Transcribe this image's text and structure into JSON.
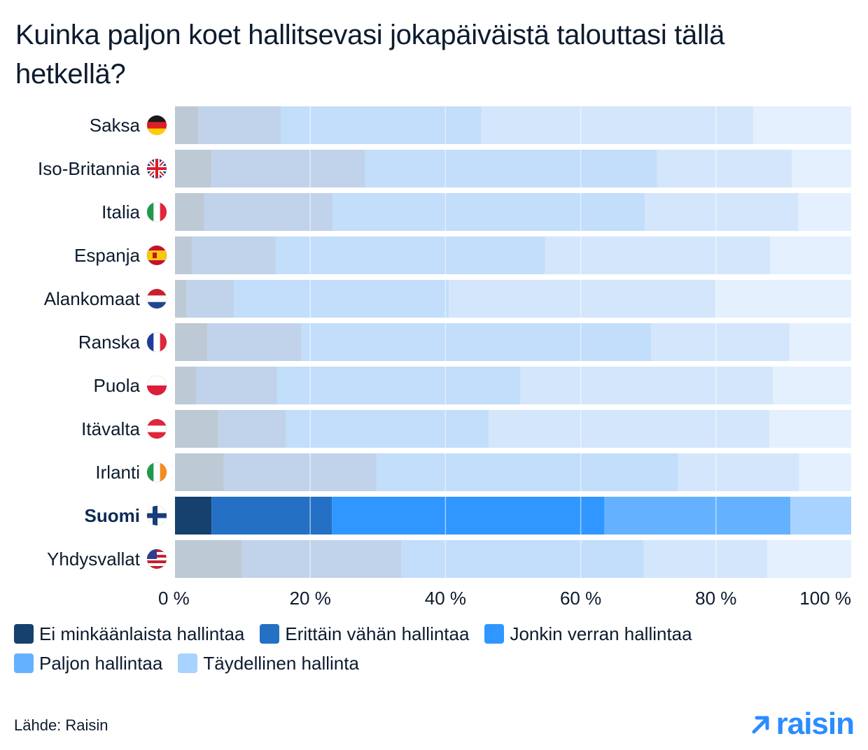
{
  "chart_data": {
    "type": "bar",
    "orientation": "horizontal",
    "stacked": true,
    "title": "Kuinka paljon koet hallitsevasi jokapäiväistä talouttasi tällä hetkellä?",
    "categories": [
      "Saksa",
      "Iso-Britannia",
      "Italia",
      "Espanja",
      "Alankomaat",
      "Ranska",
      "Puola",
      "Itävalta",
      "Irlanti",
      "Suomi",
      "Yhdysvallat"
    ],
    "highlight": "Suomi",
    "flags": [
      "de-flag-icon",
      "gb-flag-icon",
      "it-flag-icon",
      "es-flag-icon",
      "nl-flag-icon",
      "fr-flag-icon",
      "pl-flag-icon",
      "at-flag-icon",
      "ie-flag-icon",
      "fi-flag-icon",
      "us-flag-icon"
    ],
    "series": [
      {
        "name": "Ei minkäänlaista hallintaa",
        "color": "#16406e",
        "muted": "#bec9d6",
        "values": [
          3.5,
          5.4,
          4.3,
          2.5,
          1.7,
          4.8,
          3.1,
          6.4,
          7.2,
          5.4,
          9.9
        ]
      },
      {
        "name": "Erittäin vähän hallintaa",
        "color": "#2470c4",
        "muted": "#c0d3ea",
        "values": [
          12.2,
          22.7,
          19.0,
          12.4,
          7.0,
          13.9,
          12.0,
          10.0,
          22.6,
          17.8,
          23.6
        ]
      },
      {
        "name": "Jonkin verran hallintaa",
        "color": "#2f97ff",
        "muted": "#c2defb",
        "values": [
          29.6,
          43.2,
          46.2,
          39.8,
          31.8,
          51.7,
          36.0,
          30.0,
          44.6,
          40.3,
          35.8
        ]
      },
      {
        "name": "Paljon hallintaa",
        "color": "#64b2ff",
        "muted": "#d3e6fb",
        "values": [
          40.2,
          19.9,
          22.7,
          33.3,
          39.5,
          20.5,
          37.3,
          41.5,
          17.9,
          27.5,
          18.3
        ]
      },
      {
        "name": "Täydellinen hallinta",
        "color": "#a8d2ff",
        "muted": "#e4f0fd",
        "values": [
          14.5,
          8.8,
          7.8,
          12.0,
          20.0,
          9.1,
          11.6,
          12.1,
          7.7,
          9.0,
          12.4
        ]
      }
    ],
    "xlim": [
      0,
      100
    ],
    "xticks": [
      0,
      20,
      40,
      60,
      80,
      100
    ],
    "xtick_labels": [
      "0 %",
      "20 %",
      "40 %",
      "60 %",
      "80 %",
      "100 %"
    ],
    "grid": true,
    "legend_position": "bottom"
  },
  "footer": {
    "source": "Lähde: Raisin",
    "logo_text": "raisin"
  }
}
